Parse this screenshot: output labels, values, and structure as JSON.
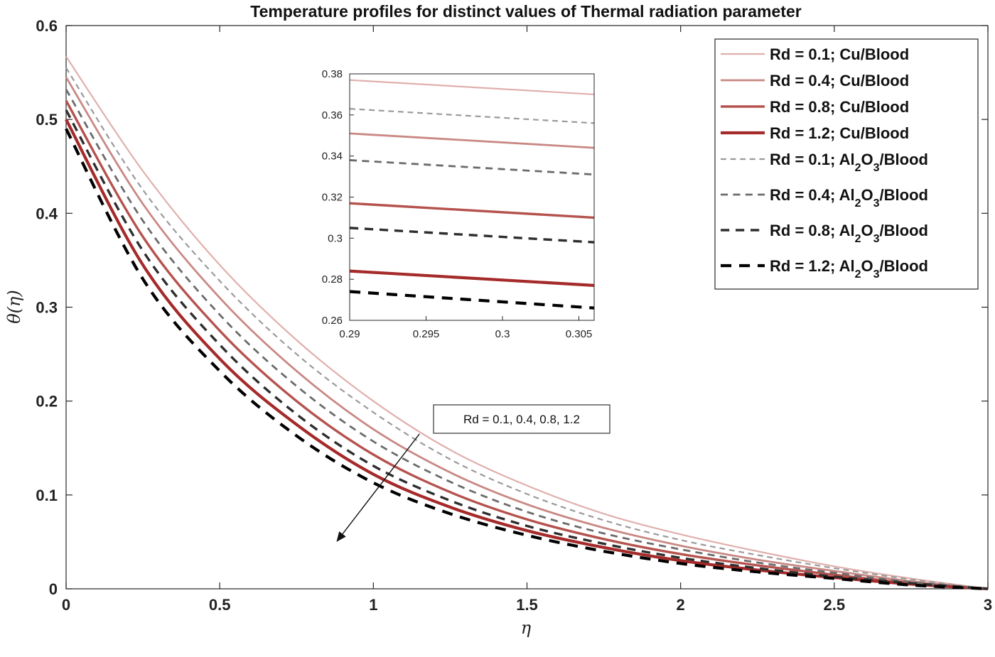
{
  "chart_data": {
    "type": "line",
    "title": "Temperature profiles for distinct values of Thermal radiation parameter",
    "xlabel": "η",
    "ylabel": "θ(η)",
    "xlim": [
      0,
      3
    ],
    "ylim": [
      0,
      0.6
    ],
    "xticks": [
      "0",
      "0.5",
      "1",
      "1.5",
      "2",
      "2.5",
      "3"
    ],
    "yticks": [
      "0",
      "0.1",
      "0.2",
      "0.3",
      "0.4",
      "0.5",
      "0.6"
    ],
    "grid": false,
    "legend_position": "top-right",
    "annotation": {
      "text": "Rd = 0.1, 0.4, 0.8, 1.2",
      "arrow_from": [
        1.15,
        0.165
      ],
      "arrow_to": [
        0.88,
        0.05
      ]
    },
    "series": [
      {
        "name": "Rd = 0.1; Cu/Blood",
        "legend_main": "Rd = 0.1; Cu/Blood",
        "color": "#e0b0ac",
        "dash": "solid",
        "width": 2.2,
        "x": [
          0,
          0.25,
          0.5,
          0.75,
          1,
          1.25,
          1.5,
          1.75,
          2,
          2.25,
          2.5,
          2.75,
          3
        ],
        "y": [
          0.567,
          0.445,
          0.345,
          0.265,
          0.2,
          0.148,
          0.11,
          0.08,
          0.058,
          0.04,
          0.024,
          0.011,
          0
        ]
      },
      {
        "name": "Rd = 0.4; Cu/Blood",
        "legend_main": "Rd = 0.4; Cu/Blood",
        "color": "#c98884",
        "dash": "solid",
        "width": 2.8,
        "x": [
          0,
          0.25,
          0.5,
          0.75,
          1,
          1.25,
          1.5,
          1.75,
          2,
          2.25,
          2.5,
          2.75,
          3
        ],
        "y": [
          0.545,
          0.41,
          0.31,
          0.232,
          0.17,
          0.124,
          0.09,
          0.065,
          0.046,
          0.031,
          0.019,
          0.008,
          0
        ]
      },
      {
        "name": "Rd = 0.8; Cu/Blood",
        "legend_main": "Rd = 0.8; Cu/Blood",
        "color": "#b5524e",
        "dash": "solid",
        "width": 3.4,
        "x": [
          0,
          0.25,
          0.5,
          0.75,
          1,
          1.25,
          1.5,
          1.75,
          2,
          2.25,
          2.5,
          2.75,
          3
        ],
        "y": [
          0.52,
          0.375,
          0.275,
          0.2,
          0.143,
          0.103,
          0.074,
          0.053,
          0.037,
          0.025,
          0.015,
          0.006,
          0
        ]
      },
      {
        "name": "Rd = 1.2; Cu/Blood",
        "legend_main": "Rd = 1.2; Cu/Blood",
        "color": "#a52a2a",
        "dash": "solid",
        "width": 4.2,
        "x": [
          0,
          0.25,
          0.5,
          0.75,
          1,
          1.25,
          1.5,
          1.75,
          2,
          2.25,
          2.5,
          2.75,
          3
        ],
        "y": [
          0.5,
          0.345,
          0.245,
          0.175,
          0.122,
          0.087,
          0.062,
          0.044,
          0.03,
          0.02,
          0.012,
          0.005,
          0
        ]
      },
      {
        "name": "Rd = 0.1; Al2O3/Blood",
        "legend_main": "Rd = 0.1; Al",
        "legend_sub1": "2",
        "legend_mid": "O",
        "legend_sub2": "3",
        "legend_end": "/Blood",
        "color": "#9a9a9a",
        "dash": "dashed",
        "width": 2.2,
        "x": [
          0,
          0.25,
          0.5,
          0.75,
          1,
          1.25,
          1.5,
          1.75,
          2,
          2.25,
          2.5,
          2.75,
          3
        ],
        "y": [
          0.555,
          0.425,
          0.328,
          0.25,
          0.188,
          0.138,
          0.101,
          0.073,
          0.052,
          0.036,
          0.022,
          0.01,
          0
        ]
      },
      {
        "name": "Rd = 0.4; Al2O3/Blood",
        "legend_main": "Rd = 0.4; Al",
        "legend_sub1": "2",
        "legend_mid": "O",
        "legend_sub2": "3",
        "legend_end": "/Blood",
        "color": "#6b6b6b",
        "dash": "dashed",
        "width": 2.8,
        "x": [
          0,
          0.25,
          0.5,
          0.75,
          1,
          1.25,
          1.5,
          1.75,
          2,
          2.25,
          2.5,
          2.75,
          3
        ],
        "y": [
          0.532,
          0.392,
          0.292,
          0.216,
          0.157,
          0.114,
          0.082,
          0.059,
          0.042,
          0.028,
          0.017,
          0.007,
          0
        ]
      },
      {
        "name": "Rd = 0.8; Al2O3/Blood",
        "legend_main": "Rd = 0.8; Al",
        "legend_sub1": "2",
        "legend_mid": "O",
        "legend_sub2": "3",
        "legend_end": "/Blood",
        "color": "#2e2e2e",
        "dash": "dashed",
        "width": 3.4,
        "x": [
          0,
          0.25,
          0.5,
          0.75,
          1,
          1.25,
          1.5,
          1.75,
          2,
          2.25,
          2.5,
          2.75,
          3
        ],
        "y": [
          0.51,
          0.36,
          0.26,
          0.186,
          0.131,
          0.094,
          0.067,
          0.048,
          0.033,
          0.022,
          0.013,
          0.006,
          0
        ]
      },
      {
        "name": "Rd = 1.2; Al2O3/Blood",
        "legend_main": "Rd = 1.2; Al",
        "legend_sub1": "2",
        "legend_mid": "O",
        "legend_sub2": "3",
        "legend_end": "/Blood",
        "color": "#000000",
        "dash": "dashed",
        "width": 4.2,
        "x": [
          0,
          0.25,
          0.5,
          0.75,
          1,
          1.25,
          1.5,
          1.75,
          2,
          2.25,
          2.5,
          2.75,
          3
        ],
        "y": [
          0.49,
          0.33,
          0.232,
          0.163,
          0.113,
          0.08,
          0.057,
          0.04,
          0.027,
          0.018,
          0.011,
          0.004,
          0
        ]
      }
    ],
    "inset": {
      "xlim": [
        0.29,
        0.306
      ],
      "ylim": [
        0.26,
        0.38
      ],
      "xticks": [
        "0.29",
        "0.295",
        "0.3",
        "0.305"
      ],
      "yticks": [
        "0.26",
        "0.28",
        "0.3",
        "0.32",
        "0.34",
        "0.36",
        "0.38"
      ],
      "x": [
        0.29,
        0.306
      ],
      "y": [
        [
          0.377,
          0.37
        ],
        [
          0.351,
          0.344
        ],
        [
          0.317,
          0.31
        ],
        [
          0.284,
          0.277
        ],
        [
          0.363,
          0.356
        ],
        [
          0.338,
          0.331
        ],
        [
          0.305,
          0.298
        ],
        [
          0.274,
          0.266
        ]
      ]
    }
  }
}
